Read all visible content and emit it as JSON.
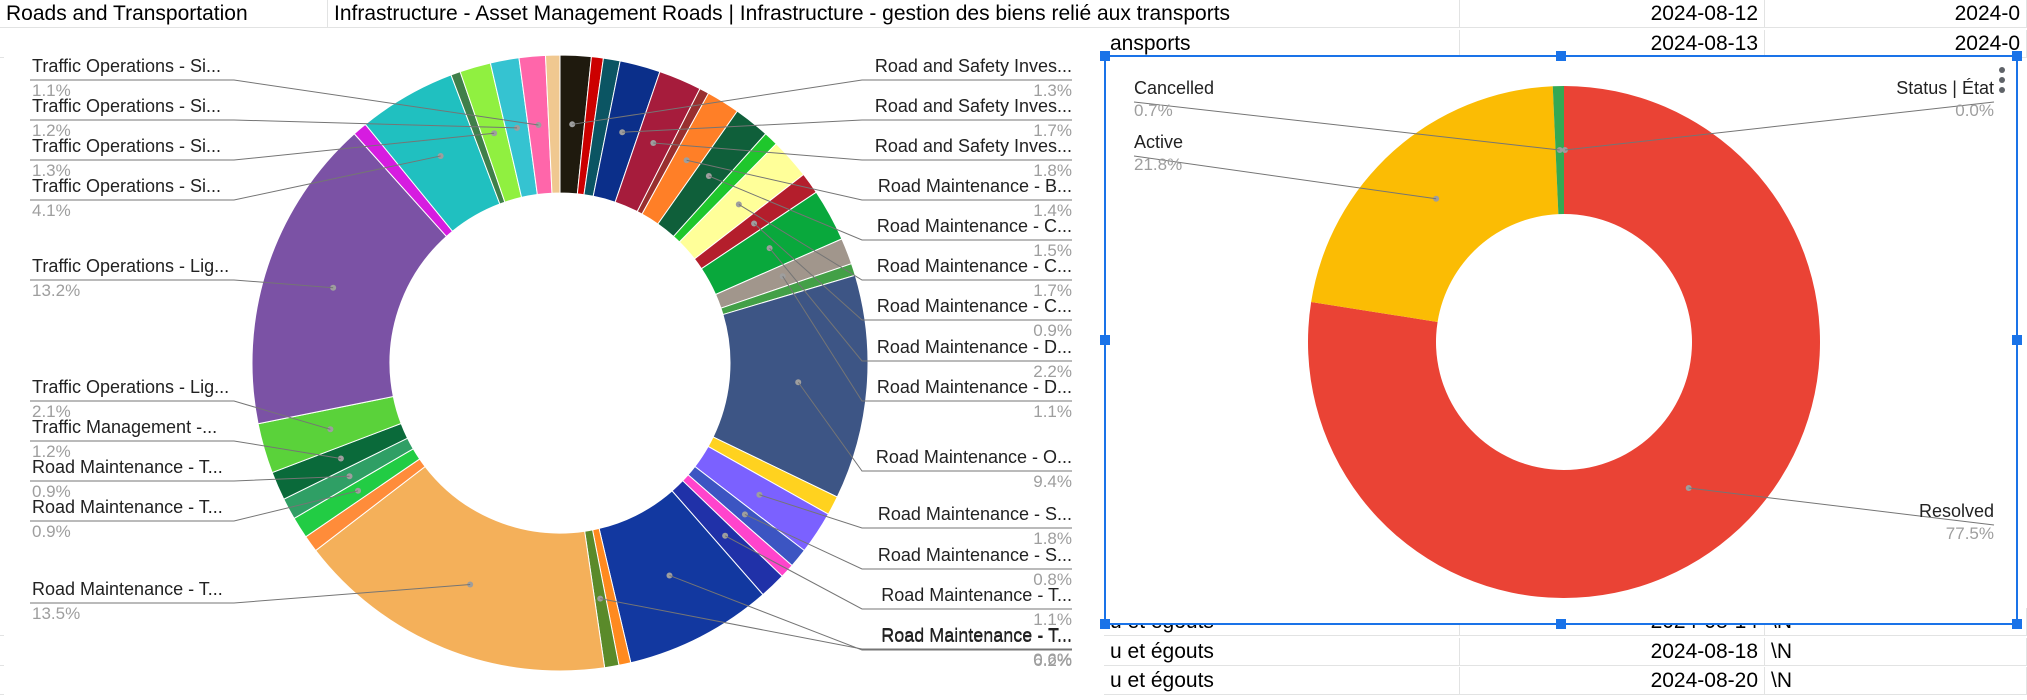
{
  "sheet": {
    "row1": {
      "a": "Roads and Transportation",
      "b": "Infrastructure - Asset Management Roads | Infrastructure - gestion des biens relié aux transports",
      "date": "2024-08-12",
      "next": "2024-0"
    },
    "row2": {
      "b": "ansports",
      "date": "2024-08-13",
      "next": "2024-0"
    },
    "row_bottom1": {
      "b": "u et égouts",
      "date": "2024-08-14",
      "next": "\\N"
    },
    "row_bottom2": {
      "b": "u et égouts",
      "date": "2024-08-18",
      "next": "\\N"
    },
    "row_bottom3": {
      "b": "u et égouts",
      "date": "2024-08-20",
      "next": "\\N"
    }
  },
  "chart_data": [
    {
      "type": "pie",
      "donut": true,
      "labeled_slices": [
        {
          "label": "Traffic Operations - Si...",
          "value": 1.1
        },
        {
          "label": "Traffic Operations - Si...",
          "value": 1.2
        },
        {
          "label": "Traffic Operations - Si...",
          "value": 1.3
        },
        {
          "label": "Traffic Operations - Si...",
          "value": 4.1
        },
        {
          "label": "Traffic Operations - Lig...",
          "value": 13.2
        },
        {
          "label": "Traffic Operations - Lig...",
          "value": 2.1
        },
        {
          "label": "Traffic Management -...",
          "value": 1.2
        },
        {
          "label": "Road Maintenance - T...",
          "value": 0.9
        },
        {
          "label": "Road Maintenance - T...",
          "value": 0.9
        },
        {
          "label": "Road Maintenance - T...",
          "value": 13.5
        },
        {
          "label": "Road Maintenance - T...",
          "value": 0.6
        },
        {
          "label": "Road and Safety Inves...",
          "value": 1.3
        },
        {
          "label": "Road and Safety Inves...",
          "value": 1.7
        },
        {
          "label": "Road and Safety Inves...",
          "value": 1.8
        },
        {
          "label": "Road Maintenance - B...",
          "value": 1.4
        },
        {
          "label": "Road Maintenance - C...",
          "value": 1.5
        },
        {
          "label": "Road Maintenance - C...",
          "value": 1.7
        },
        {
          "label": "Road Maintenance - C...",
          "value": 0.9
        },
        {
          "label": "Road Maintenance - D...",
          "value": 2.2
        },
        {
          "label": "Road Maintenance - D...",
          "value": 1.1
        },
        {
          "label": "Road Maintenance - O...",
          "value": 9.4
        },
        {
          "label": "Road Maintenance - S...",
          "value": 1.8
        },
        {
          "label": "Road Maintenance - S...",
          "value": 0.8
        },
        {
          "label": "Road Maintenance - T...",
          "value": 1.1
        },
        {
          "label": "Road Maintenance - T...",
          "value": 6.2
        }
      ],
      "unit": "%"
    },
    {
      "type": "pie",
      "donut": true,
      "slices": [
        {
          "label": "Resolved",
          "value": 77.5,
          "color": "#ea4335"
        },
        {
          "label": "Active",
          "value": 21.8,
          "color": "#fbbc04"
        },
        {
          "label": "Cancelled",
          "value": 0.7,
          "color": "#34a853"
        },
        {
          "label": "Status | État",
          "value": 0.0,
          "color": "#4285f4"
        }
      ],
      "unit": "%"
    }
  ]
}
